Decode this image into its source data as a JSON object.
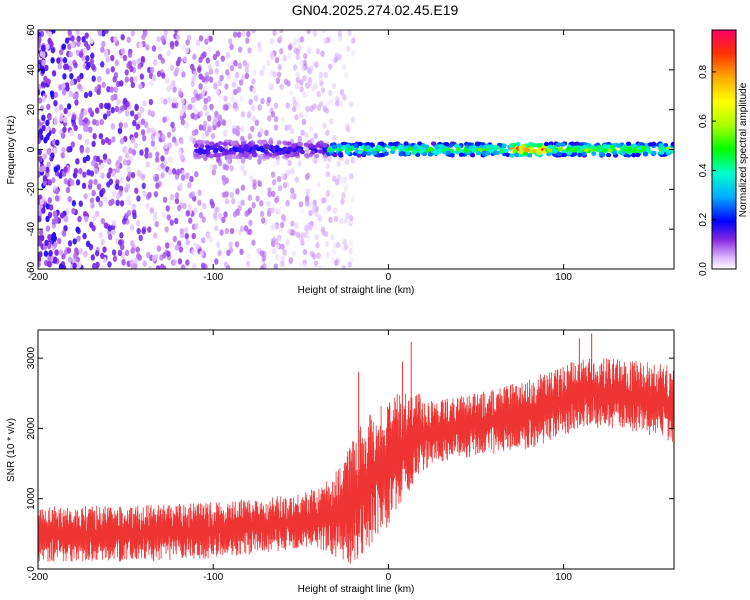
{
  "title": "GN04.2025.274.02.45.E19",
  "chart_data": [
    {
      "type": "heatmap",
      "xlabel": "Height of straight line (km)",
      "ylabel": "Frequency (Hz)",
      "xlim": [
        -200,
        163
      ],
      "ylim": [
        -60,
        60
      ],
      "xticks": [
        -200,
        -100,
        0,
        100
      ],
      "yticks": [
        -60,
        -40,
        -20,
        0,
        20,
        40,
        60
      ],
      "colorbar": {
        "label": "Normalized spectral amplitude",
        "range": [
          0,
          0.97
        ],
        "ticks": [
          0.0,
          0.2,
          0.4,
          0.6,
          0.8
        ]
      },
      "features": [
        {
          "x_range": [
            -200,
            -20
          ],
          "freq_range": [
            -60,
            60
          ],
          "amplitude": 0.1
        },
        {
          "x_range": [
            -110,
            -35
          ],
          "freq_range": [
            -4,
            4
          ],
          "amplitude": 0.2
        },
        {
          "x_range": [
            -35,
            10
          ],
          "freq_range": [
            -3,
            3
          ],
          "amplitude": 0.5
        },
        {
          "x_range": [
            10,
            70
          ],
          "freq_range": [
            -3,
            3
          ],
          "amplitude": 0.55
        },
        {
          "x_range": [
            70,
            90
          ],
          "freq_range": [
            -3,
            3
          ],
          "amplitude": 0.95
        },
        {
          "x_range": [
            90,
            163
          ],
          "freq_range": [
            -3,
            3
          ],
          "amplitude": 0.6
        }
      ]
    },
    {
      "type": "line",
      "xlabel": "Height of straight line (km)",
      "ylabel": "SNR (10 * v/v)",
      "xlim": [
        -200,
        163
      ],
      "ylim": [
        0,
        3400
      ],
      "xticks": [
        -200,
        -100,
        0,
        100
      ],
      "yticks": [
        0,
        1000,
        2000,
        3000
      ],
      "color": "#ee3333",
      "envelope": [
        {
          "x": -200,
          "low": 100,
          "high": 900
        },
        {
          "x": -150,
          "low": 100,
          "high": 900
        },
        {
          "x": -100,
          "low": 150,
          "high": 950
        },
        {
          "x": -60,
          "low": 250,
          "high": 1050
        },
        {
          "x": -40,
          "low": 300,
          "high": 1150
        },
        {
          "x": -30,
          "low": 150,
          "high": 1400
        },
        {
          "x": -20,
          "low": 50,
          "high": 1900
        },
        {
          "x": -10,
          "low": 300,
          "high": 2300
        },
        {
          "x": 0,
          "low": 600,
          "high": 2400
        },
        {
          "x": 10,
          "low": 1000,
          "high": 2600
        },
        {
          "x": 25,
          "low": 1500,
          "high": 2400
        },
        {
          "x": 50,
          "low": 1600,
          "high": 2500
        },
        {
          "x": 80,
          "low": 1700,
          "high": 2700
        },
        {
          "x": 110,
          "low": 2000,
          "high": 3000
        },
        {
          "x": 130,
          "low": 2000,
          "high": 3000
        },
        {
          "x": 163,
          "low": 1800,
          "high": 2900
        }
      ],
      "spikes": [
        {
          "x": 13,
          "y": 3230
        },
        {
          "x": 116,
          "y": 3350
        },
        {
          "x": 109,
          "y": 3280
        },
        {
          "x": -17,
          "y": 2800
        },
        {
          "x": 8,
          "y": 2950
        }
      ]
    }
  ]
}
